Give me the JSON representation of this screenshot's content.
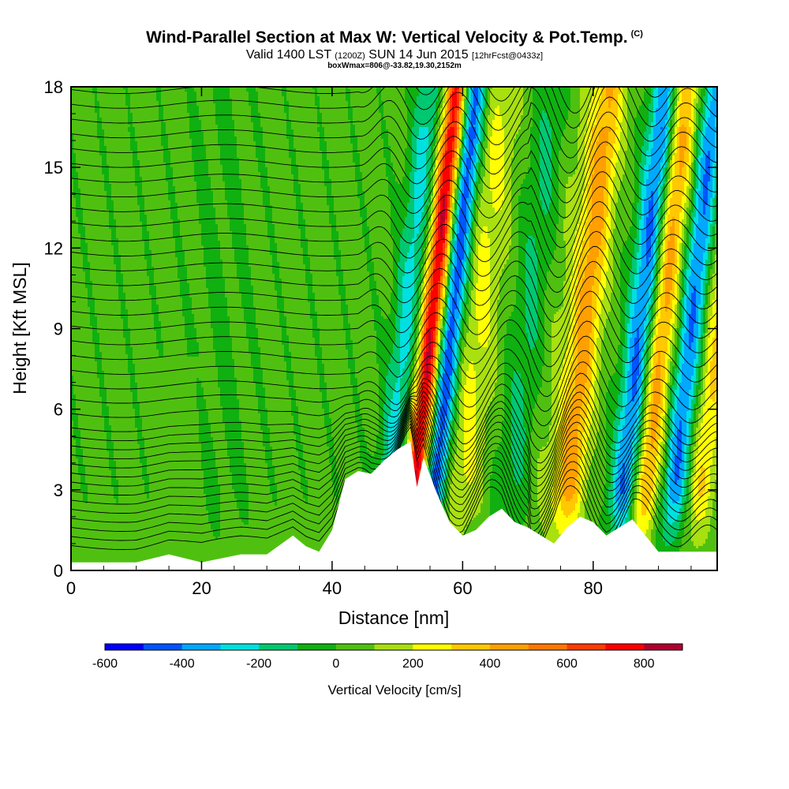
{
  "header": {
    "title": "Wind-Parallel Section at Max W: Vertical Velocity & Pot.Temp.",
    "copyright": "(C)",
    "valid_main": "Valid 1400 LST",
    "valid_utc": "(1200Z)",
    "valid_date": "SUN 14 Jun 2015",
    "forecast": "[12hrFcst@0433z]",
    "box_info": "boxWmax=806@-33.82,19.30,2152m"
  },
  "chart_data": {
    "type": "heatmap",
    "xlabel": "Distance [nm]",
    "ylabel": "Height [Kft MSL]",
    "xlim": [
      0,
      99
    ],
    "ylim": [
      0,
      18
    ],
    "x_ticks": [
      0,
      20,
      40,
      60,
      80
    ],
    "y_ticks": [
      0,
      3,
      6,
      9,
      12,
      15,
      18
    ],
    "max_w_cm_s": 806,
    "updraft_axes_nm": [
      54,
      77,
      89
    ],
    "downdraft_axes_nm": [
      50,
      57,
      86,
      94
    ],
    "terrain_kft": [
      [
        0,
        0.3
      ],
      [
        10,
        0.3
      ],
      [
        15,
        0.6
      ],
      [
        20,
        0.3
      ],
      [
        26,
        0.6
      ],
      [
        30,
        0.6
      ],
      [
        34,
        1.3
      ],
      [
        36,
        0.9
      ],
      [
        38,
        0.7
      ],
      [
        40,
        1.5
      ],
      [
        42,
        3.4
      ],
      [
        44,
        3.7
      ],
      [
        46,
        3.6
      ],
      [
        48,
        4.1
      ],
      [
        50,
        4.5
      ],
      [
        52,
        4.8
      ],
      [
        53,
        3.1
      ],
      [
        54,
        4.2
      ],
      [
        56,
        2.9
      ],
      [
        58,
        1.8
      ],
      [
        60,
        1.3
      ],
      [
        62,
        1.5
      ],
      [
        64,
        2.0
      ],
      [
        66,
        2.3
      ],
      [
        68,
        1.8
      ],
      [
        70,
        1.6
      ],
      [
        72,
        1.3
      ],
      [
        74,
        1.0
      ],
      [
        76,
        1.6
      ],
      [
        78,
        2.0
      ],
      [
        80,
        1.8
      ],
      [
        82,
        1.3
      ],
      [
        84,
        1.6
      ],
      [
        86,
        1.9
      ],
      [
        88,
        1.3
      ],
      [
        90,
        0.7
      ],
      [
        94,
        0.7
      ],
      [
        99,
        0.7
      ]
    ],
    "colorbar": {
      "title": "Vertical Velocity [cm/s]",
      "labels": [
        "-600",
        "-400",
        "-200",
        "0",
        "200",
        "400",
        "600",
        "800"
      ],
      "label_values": [
        -600,
        -400,
        -200,
        0,
        200,
        400,
        600,
        800
      ],
      "range": [
        -600,
        900
      ],
      "step": 100,
      "colors": [
        "#0000ff",
        "#0055ff",
        "#00a8ff",
        "#00e0e0",
        "#00c870",
        "#10b010",
        "#50c010",
        "#a8e010",
        "#ffff00",
        "#ffc800",
        "#ffa000",
        "#ff7800",
        "#ff3c00",
        "#ff0000",
        "#b00030"
      ]
    }
  }
}
